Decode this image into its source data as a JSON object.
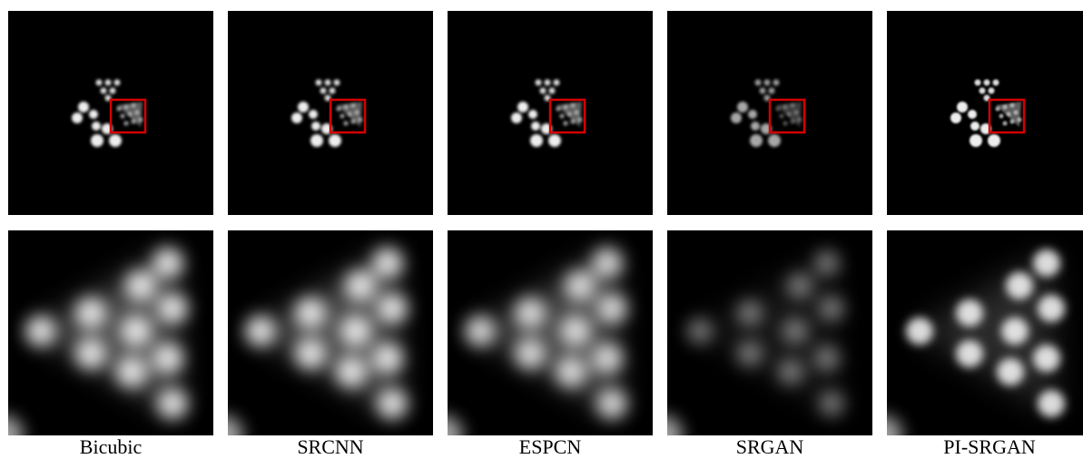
{
  "figure": {
    "captions": [
      "Bicubic",
      "SRCNN",
      "ESPCN",
      "SRGAN",
      "PI-SRGAN"
    ]
  }
}
